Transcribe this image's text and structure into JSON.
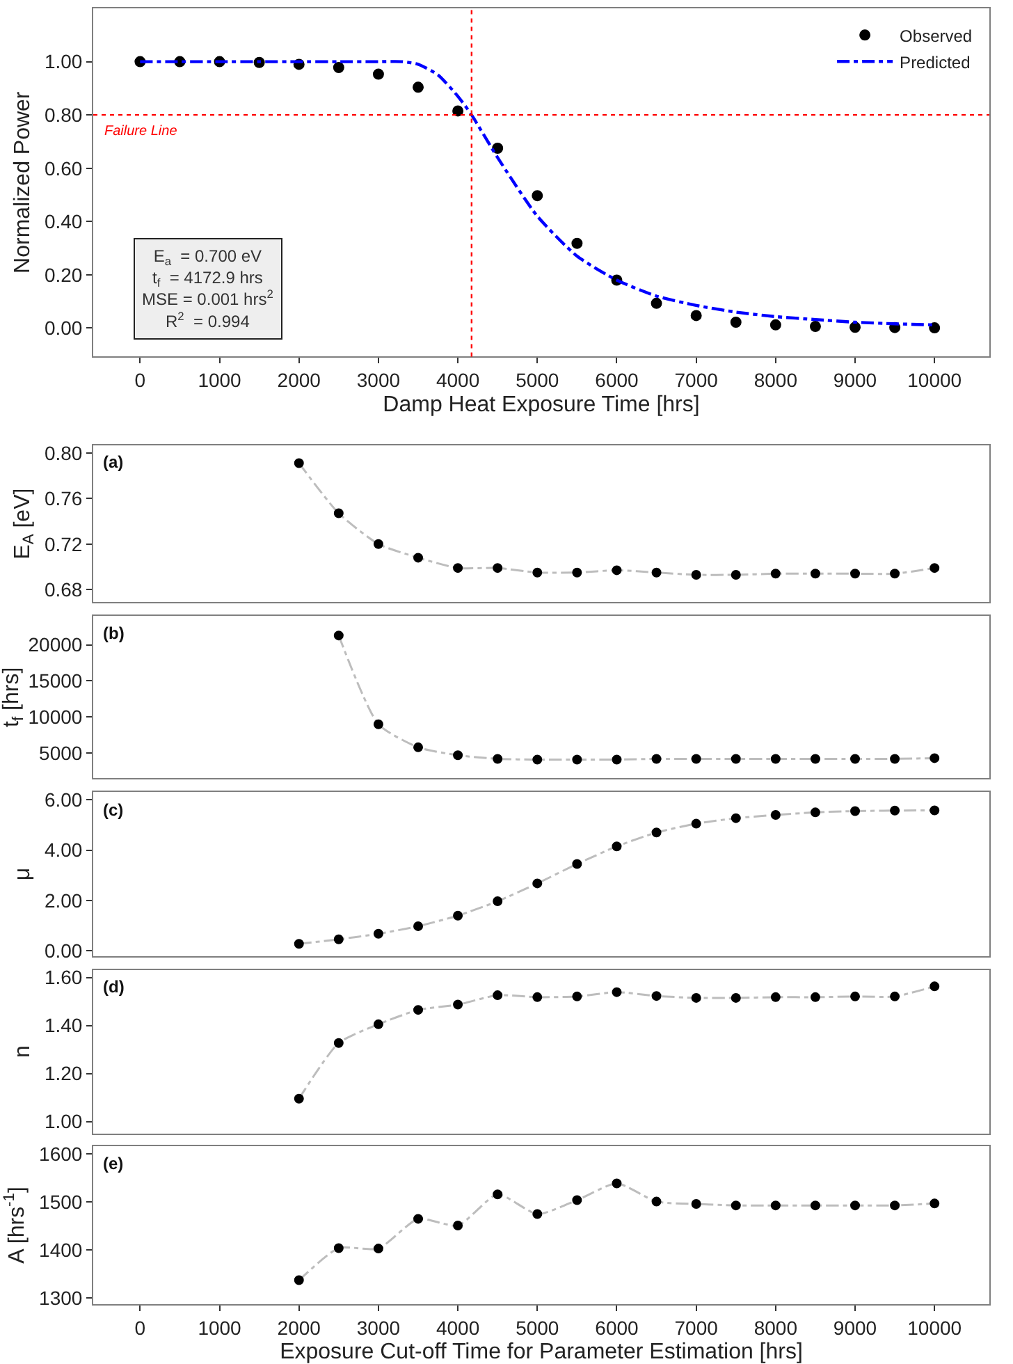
{
  "chart_data": [
    {
      "type": "scatter",
      "xlabel": "Damp Heat Exposure Time [hrs]",
      "ylabel": "Normalized Power",
      "x": [
        0,
        500,
        1000,
        1500,
        2000,
        2500,
        3000,
        3500,
        4000,
        4500,
        5000,
        5500,
        6000,
        6500,
        7000,
        7500,
        8000,
        8500,
        9000,
        9500,
        10000
      ],
      "series": [
        {
          "name": "Observed",
          "type": "scatter",
          "color": "#000000",
          "marker": "circle",
          "values": [
            1.0,
            1.0,
            1.0,
            0.997,
            0.99,
            0.978,
            0.953,
            0.904,
            0.815,
            0.675,
            0.497,
            0.318,
            0.18,
            0.093,
            0.047,
            0.022,
            0.012,
            0.006,
            0.003,
            0.002,
            0.001
          ]
        },
        {
          "name": "Predicted",
          "type": "line",
          "color": "#0000ff",
          "line_style": "dashed",
          "x": [
            0,
            500,
            1000,
            1500,
            2000,
            2500,
            3000,
            3300,
            3500,
            3750,
            4000,
            4173,
            4500,
            5000,
            5500,
            6000,
            6500,
            7000,
            7500,
            8000,
            8500,
            9000,
            9500,
            10000
          ],
          "values": [
            1.0,
            1.0,
            1.0,
            1.0,
            1.0,
            1.0,
            1.0,
            1.0,
            0.99,
            0.95,
            0.87,
            0.8,
            0.64,
            0.42,
            0.27,
            0.18,
            0.12,
            0.085,
            0.06,
            0.043,
            0.032,
            0.022,
            0.016,
            0.012
          ]
        }
      ],
      "xlim": [
        -590,
        10690
      ],
      "xticks": [
        0,
        1000,
        2000,
        3000,
        4000,
        5000,
        6000,
        7000,
        8000,
        9000,
        10000
      ],
      "ylim": [
        -0.107,
        1.2
      ],
      "yticks": [
        {
          "value": 0,
          "label": "0.00"
        },
        {
          "value": 0.2,
          "label": "0.20"
        },
        {
          "value": 0.4,
          "label": "0.40"
        },
        {
          "value": 0.6,
          "label": "0.60"
        },
        {
          "value": 0.8,
          "label": "0.80"
        },
        {
          "value": 1.0,
          "label": "1.00"
        }
      ],
      "ref_lines": [
        {
          "axis": "y",
          "value": 0.8,
          "label": "Failure Line",
          "color": "#ff0000",
          "line_style": "dotted"
        },
        {
          "axis": "x",
          "value": 4172.9,
          "color": "#ff0000",
          "line_style": "dotted"
        }
      ],
      "annotations": [
        "E$_{a}$  = 0.700 eV",
        "t$_{f}$  = 4172.9 hrs",
        "MSE = 0.001 hrs$^{2}$",
        "R$^{2}$  = 0.994"
      ],
      "legend": "top right"
    },
    {
      "type": "line",
      "ylabel": "E$_{A}$ [eV]",
      "annotations": [
        "(a)"
      ],
      "x": [
        2000,
        2500,
        3000,
        3500,
        4000,
        4500,
        5000,
        5500,
        6000,
        6500,
        7000,
        7500,
        8000,
        8500,
        9000,
        9500,
        10000
      ],
      "series": [
        {
          "color": "#000000",
          "values": [
            0.791,
            0.747,
            0.72,
            0.708,
            0.699,
            0.699,
            0.695,
            0.695,
            0.697,
            0.695,
            0.693,
            0.693,
            0.694,
            0.694,
            0.694,
            0.694,
            0.699
          ]
        }
      ],
      "xlim": [
        -590,
        10690
      ],
      "ylim": [
        0.669,
        0.8066
      ],
      "yticks": [
        {
          "value": 0.68,
          "label": "0.68"
        },
        {
          "value": 0.72,
          "label": "0.72"
        },
        {
          "value": 0.76,
          "label": "0.76"
        },
        {
          "value": 0.8,
          "label": "0.80"
        }
      ],
      "tick_labels": "y",
      "marker": "circle",
      "line_style": "dashed"
    },
    {
      "type": "line",
      "ylabel": "t$_{f}$ [hrs]",
      "annotations": [
        "(b)"
      ],
      "x": [
        2500,
        3000,
        3500,
        4000,
        4500,
        5000,
        5500,
        6000,
        6500,
        7000,
        7500,
        8000,
        8500,
        9000,
        9500,
        10000
      ],
      "series": [
        {
          "color": "#000000",
          "values": [
            21300,
            9000,
            5800,
            4700,
            4200,
            4100,
            4100,
            4100,
            4200,
            4200,
            4200,
            4200,
            4200,
            4200,
            4200,
            4300
          ]
        }
      ],
      "xlim": [
        -590,
        10690
      ],
      "ylim": [
        1500,
        24000
      ],
      "yticks": [
        5000,
        10000,
        15000,
        20000
      ],
      "tick_labels": "y",
      "marker": "circle",
      "line_style": "dashed"
    },
    {
      "type": "line",
      "ylabel": "μ",
      "annotations": [
        "(c)"
      ],
      "x": [
        2000,
        2500,
        3000,
        3500,
        4000,
        4500,
        5000,
        5500,
        6000,
        6500,
        7000,
        7500,
        8000,
        8500,
        9000,
        9500,
        10000
      ],
      "series": [
        {
          "color": "#000000",
          "values": [
            0.28,
            0.46,
            0.68,
            0.98,
            1.4,
            1.97,
            2.68,
            3.45,
            4.15,
            4.7,
            5.05,
            5.27,
            5.4,
            5.5,
            5.55,
            5.57,
            5.58
          ]
        }
      ],
      "xlim": [
        -590,
        10690
      ],
      "ylim": [
        -0.2,
        6.3
      ],
      "yticks": [
        {
          "value": 0,
          "label": "0.00"
        },
        {
          "value": 2,
          "label": "2.00"
        },
        {
          "value": 4,
          "label": "4.00"
        },
        {
          "value": 6,
          "label": "6.00"
        }
      ],
      "tick_labels": "y",
      "marker": "circle",
      "line_style": "dashed"
    },
    {
      "type": "line",
      "ylabel": "n",
      "annotations": [
        "(d)"
      ],
      "x": [
        2000,
        2500,
        3000,
        3500,
        4000,
        4500,
        5000,
        5500,
        6000,
        6500,
        7000,
        7500,
        8000,
        8500,
        9000,
        9500,
        10000
      ],
      "series": [
        {
          "color": "#000000",
          "values": [
            1.095,
            1.327,
            1.405,
            1.465,
            1.487,
            1.526,
            1.518,
            1.521,
            1.539,
            1.523,
            1.515,
            1.515,
            1.518,
            1.518,
            1.521,
            1.521,
            1.563
          ]
        }
      ],
      "xlim": [
        -590,
        10690
      ],
      "ylim": [
        0.95,
        1.632
      ],
      "yticks": [
        {
          "value": 1.0,
          "label": "1.00"
        },
        {
          "value": 1.2,
          "label": "1.20"
        },
        {
          "value": 1.4,
          "label": "1.40"
        },
        {
          "value": 1.6,
          "label": "1.60"
        }
      ],
      "tick_labels": "y",
      "marker": "circle",
      "line_style": "dashed"
    },
    {
      "type": "line",
      "ylabel": "A [hrs$^{-1}$]",
      "xlabel": "Exposure Cut-off Time for Parameter Estimation [hrs]",
      "annotations": [
        "(e)"
      ],
      "x": [
        2000,
        2500,
        3000,
        3500,
        4000,
        4500,
        5000,
        5500,
        6000,
        6500,
        7000,
        7500,
        8000,
        8500,
        9000,
        9500,
        10000
      ],
      "series": [
        {
          "color": "#000000",
          "values": [
            1337,
            1404,
            1403,
            1465,
            1451,
            1516,
            1475,
            1504,
            1539,
            1501,
            1496,
            1493,
            1493,
            1493,
            1493,
            1493,
            1497
          ]
        }
      ],
      "xlim": [
        -590,
        10690
      ],
      "xticks": [
        0,
        1000,
        2000,
        3000,
        4000,
        5000,
        6000,
        7000,
        8000,
        9000,
        10000
      ],
      "ylim": [
        1287,
        1617
      ],
      "yticks": [
        1300,
        1400,
        1500,
        1600
      ],
      "marker": "circle",
      "line_style": "dashed"
    }
  ]
}
